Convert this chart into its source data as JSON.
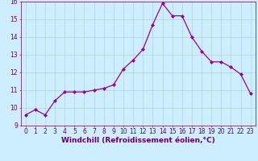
{
  "x": [
    0,
    1,
    2,
    3,
    4,
    5,
    6,
    7,
    8,
    9,
    10,
    11,
    12,
    13,
    14,
    15,
    16,
    17,
    18,
    19,
    20,
    21,
    22,
    23
  ],
  "y": [
    9.6,
    9.9,
    9.6,
    10.4,
    10.9,
    10.9,
    10.9,
    11.0,
    11.1,
    11.3,
    12.2,
    12.7,
    13.3,
    14.7,
    15.9,
    15.2,
    15.2,
    14.0,
    13.2,
    12.6,
    12.6,
    12.3,
    11.9,
    10.8
  ],
  "line_color": "#990099",
  "marker": "D",
  "markersize": 2.0,
  "linewidth": 0.9,
  "xlabel": "Windchill (Refroidissement éolien,°C)",
  "xlabel_color": "#660066",
  "tick_color": "#660066",
  "background_color": "#cceeff",
  "grid_color": "#aacccc",
  "ylim": [
    9,
    16
  ],
  "xlim": [
    -0.5,
    23.5
  ],
  "yticks": [
    9,
    10,
    11,
    12,
    13,
    14,
    15,
    16
  ],
  "xticks": [
    0,
    1,
    2,
    3,
    4,
    5,
    6,
    7,
    8,
    9,
    10,
    11,
    12,
    13,
    14,
    15,
    16,
    17,
    18,
    19,
    20,
    21,
    22,
    23
  ],
  "tick_fontsize": 5.5,
  "xlabel_fontsize": 6.5
}
